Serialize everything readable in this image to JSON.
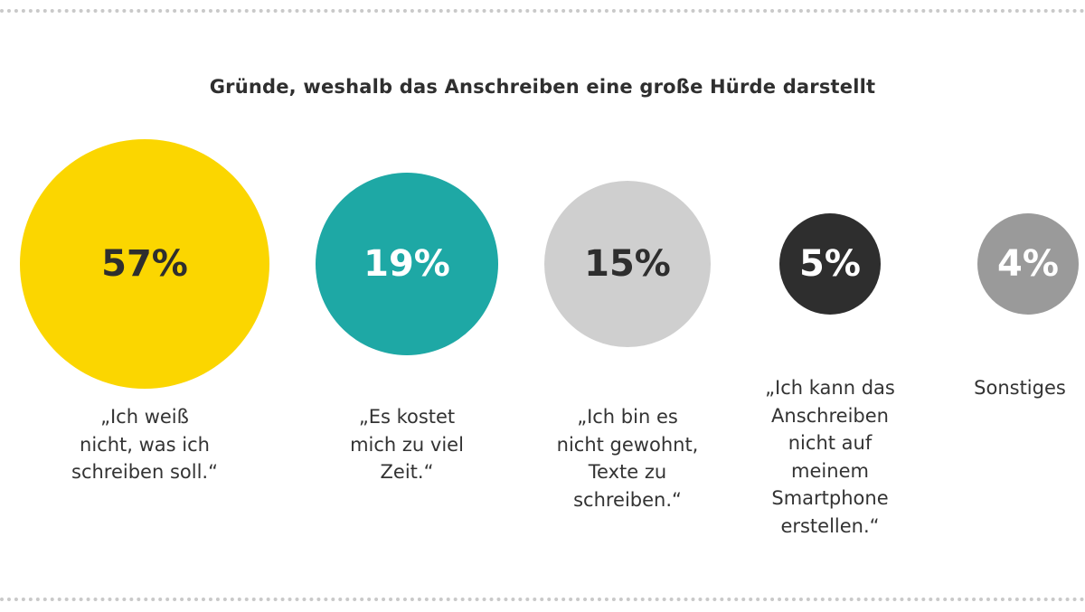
{
  "chart_data": {
    "type": "bubble",
    "title": "Gründe, weshalb das Anschreiben eine große Hürde darstellt",
    "categories": [
      "„Ich weiß nicht, was ich schreiben soll.“",
      "„Es kostet mich zu viel Zeit.“",
      "„Ich bin es nicht gewohnt, Texte zu schreiben.“",
      "„Ich kann das Anschreiben nicht auf meinem Smartphone erstellen.“",
      "Sonstiges"
    ],
    "values": [
      57,
      19,
      15,
      5,
      4
    ],
    "value_labels": [
      "57%",
      "19%",
      "15%",
      "5%",
      "4%"
    ],
    "unit": "%",
    "colors": [
      "#fbd600",
      "#1ea8a5",
      "#cfcfcf",
      "#2e2e2e",
      "#9a9a9a"
    ],
    "label_colors": [
      "#2e2e2e",
      "#ffffff",
      "#2e2e2e",
      "#ffffff",
      "#ffffff"
    ]
  }
}
